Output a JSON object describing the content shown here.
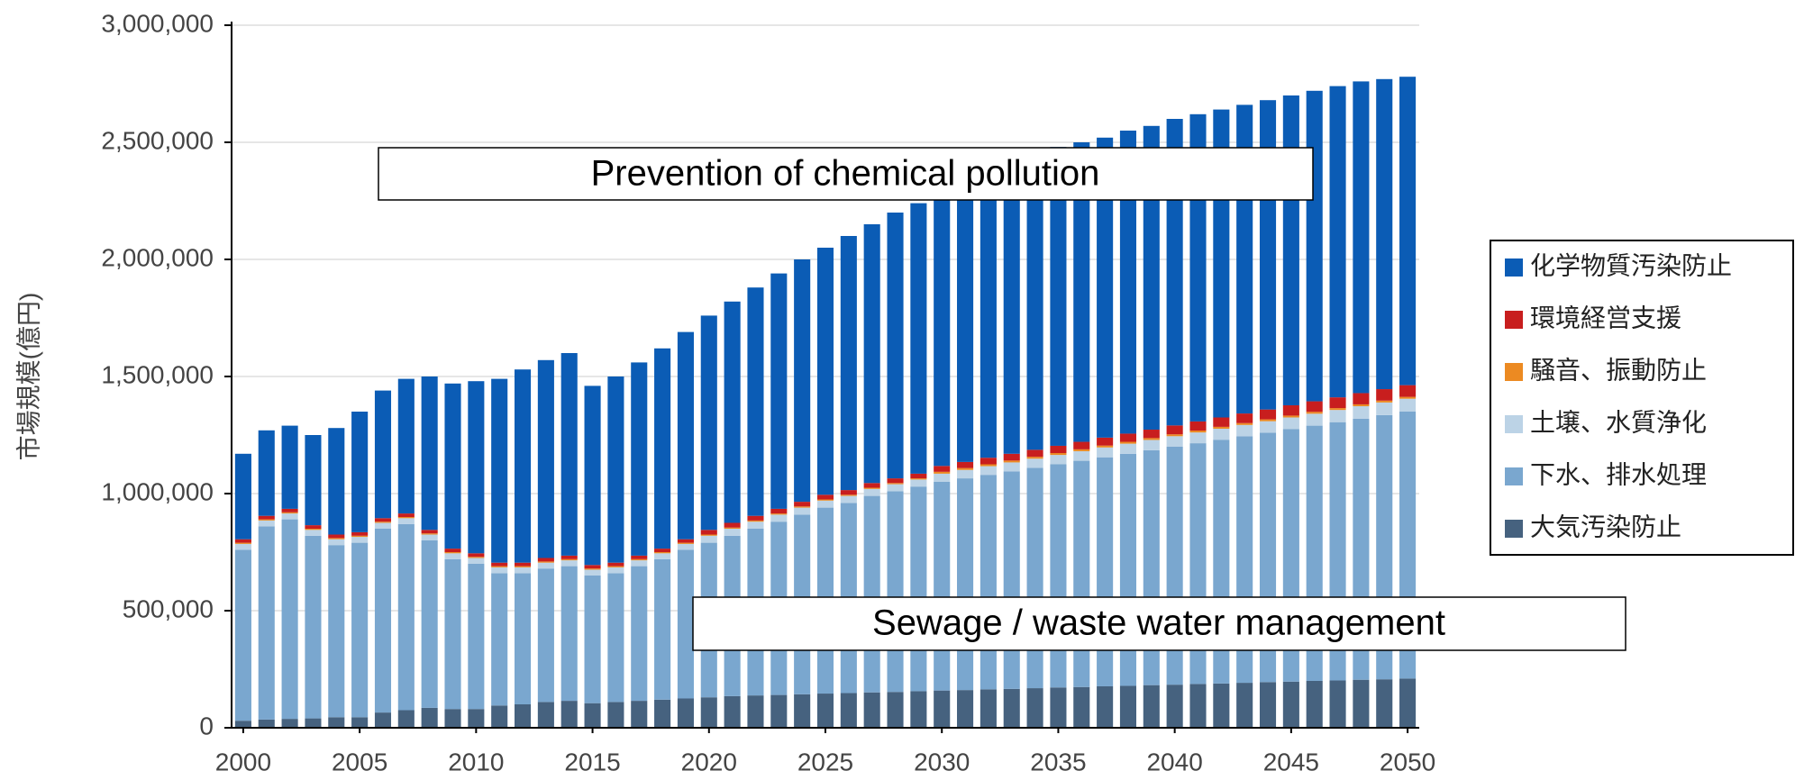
{
  "chart_data": {
    "type": "stacked_bar",
    "y_label": "市場規模(億円)",
    "x": [
      2000,
      2001,
      2002,
      2003,
      2004,
      2005,
      2006,
      2007,
      2008,
      2009,
      2010,
      2011,
      2012,
      2013,
      2014,
      2015,
      2016,
      2017,
      2018,
      2019,
      2020,
      2021,
      2022,
      2023,
      2024,
      2025,
      2026,
      2027,
      2028,
      2029,
      2030,
      2031,
      2032,
      2033,
      2034,
      2035,
      2036,
      2037,
      2038,
      2039,
      2040,
      2041,
      2042,
      2043,
      2044,
      2045,
      2046,
      2047,
      2048,
      2049,
      2050
    ],
    "xlim": [
      1999.5,
      2050.5
    ],
    "xticks": [
      2000,
      2005,
      2010,
      2015,
      2020,
      2025,
      2030,
      2035,
      2040,
      2045,
      2050
    ],
    "ylim": [
      0,
      3000000
    ],
    "yticks": [
      0,
      {
        "value": 500000,
        "label": "500,000"
      },
      {
        "value": 1000000,
        "label": "1,000,000"
      },
      {
        "value": 1500000,
        "label": "1,500,000"
      },
      {
        "value": 2000000,
        "label": "2,000,000"
      },
      {
        "value": 2500000,
        "label": "2,500,000"
      },
      {
        "value": 3000000,
        "label": "3,000,000"
      }
    ],
    "grid": true,
    "legend": "right",
    "series": [
      {
        "name": "大気汚染防止",
        "color": "#46627f",
        "values": [
          30000,
          35000,
          38000,
          40000,
          45000,
          45000,
          65000,
          75000,
          85000,
          80000,
          80000,
          95000,
          100000,
          110000,
          115000,
          105000,
          110000,
          115000,
          120000,
          125000,
          130000,
          135000,
          138000,
          140000,
          143000,
          146000,
          148000,
          151000,
          153000,
          156000,
          159000,
          161000,
          164000,
          166000,
          169000,
          172000,
          174000,
          177000,
          179000,
          182000,
          184000,
          187000,
          189000,
          192000,
          195000,
          197000,
          200000,
          202000,
          205000,
          207000,
          210000
        ]
      },
      {
        "name": "下水、排水処理",
        "color": "#7aa7cf",
        "values": [
          730000,
          825000,
          852000,
          780000,
          735000,
          745000,
          785000,
          795000,
          715000,
          640000,
          620000,
          565000,
          560000,
          570000,
          575000,
          545000,
          550000,
          575000,
          600000,
          635000,
          660000,
          685000,
          712000,
          740000,
          767000,
          794000,
          812000,
          839000,
          857000,
          874000,
          891000,
          904000,
          916000,
          929000,
          941000,
          953000,
          966000,
          978000,
          991000,
          1003000,
          1016000,
          1028000,
          1041000,
          1053000,
          1065000,
          1078000,
          1090000,
          1103000,
          1115000,
          1128000,
          1140000
        ]
      },
      {
        "name": "土壌、水質浄化",
        "color": "#bcd3e6",
        "values": [
          25000,
          25000,
          25000,
          25000,
          25000,
          25000,
          25000,
          25000,
          25000,
          25000,
          25000,
          25000,
          25000,
          25000,
          25000,
          25000,
          25000,
          25000,
          25000,
          25000,
          30000,
          30000,
          30000,
          30000,
          30000,
          30000,
          30000,
          30000,
          30000,
          30000,
          35000,
          36000,
          37000,
          38000,
          39000,
          40000,
          41000,
          42000,
          43000,
          44000,
          45000,
          46000,
          47000,
          48000,
          49000,
          50000,
          51000,
          52000,
          53000,
          54000,
          55000
        ]
      },
      {
        "name": "騒音、振動防止",
        "color": "#ec8a22",
        "values": [
          5000,
          5000,
          5000,
          5000,
          5000,
          5000,
          5000,
          5000,
          5000,
          5000,
          5000,
          5000,
          5000,
          5000,
          5000,
          5000,
          5000,
          5000,
          5000,
          5000,
          5000,
          5000,
          5000,
          5000,
          5000,
          5000,
          5000,
          5000,
          5000,
          5000,
          8000,
          8000,
          8000,
          8000,
          8000,
          8000,
          8000,
          8000,
          8000,
          8000,
          8000,
          8000,
          8000,
          8000,
          8000,
          8000,
          8000,
          8000,
          8000,
          8000,
          8000
        ]
      },
      {
        "name": "環境経営支援",
        "color": "#c81e1e",
        "values": [
          15000,
          15000,
          15000,
          15000,
          15000,
          15000,
          15000,
          15000,
          15000,
          15000,
          15000,
          15000,
          15000,
          15000,
          15000,
          15000,
          15000,
          15000,
          15000,
          15000,
          20000,
          20000,
          20000,
          20000,
          20000,
          20000,
          20000,
          20000,
          20000,
          20000,
          25000,
          26000,
          28000,
          29000,
          30000,
          31000,
          32000,
          34000,
          35000,
          36000,
          38000,
          39000,
          40000,
          41000,
          42000,
          44000,
          45000,
          46000,
          48000,
          49000,
          50000
        ]
      },
      {
        "name": "化学物質汚染防止",
        "color": "#0b5cb5",
        "values": [
          365000,
          365000,
          355000,
          385000,
          455000,
          515000,
          545000,
          575000,
          655000,
          705000,
          735000,
          785000,
          825000,
          845000,
          865000,
          765000,
          795000,
          825000,
          855000,
          885000,
          915000,
          945000,
          975000,
          1005000,
          1035000,
          1055000,
          1085000,
          1105000,
          1135000,
          1155000,
          1162000,
          1185000,
          1207000,
          1230000,
          1253000,
          1276000,
          1279000,
          1281000,
          1294000,
          1297000,
          1309000,
          1312000,
          1315000,
          1318000,
          1321000,
          1323000,
          1326000,
          1329000,
          1331000,
          1324000,
          1317000
        ]
      }
    ],
    "annotations": [
      "Prevention of chemical pollution",
      "Sewage / waste water management"
    ]
  }
}
